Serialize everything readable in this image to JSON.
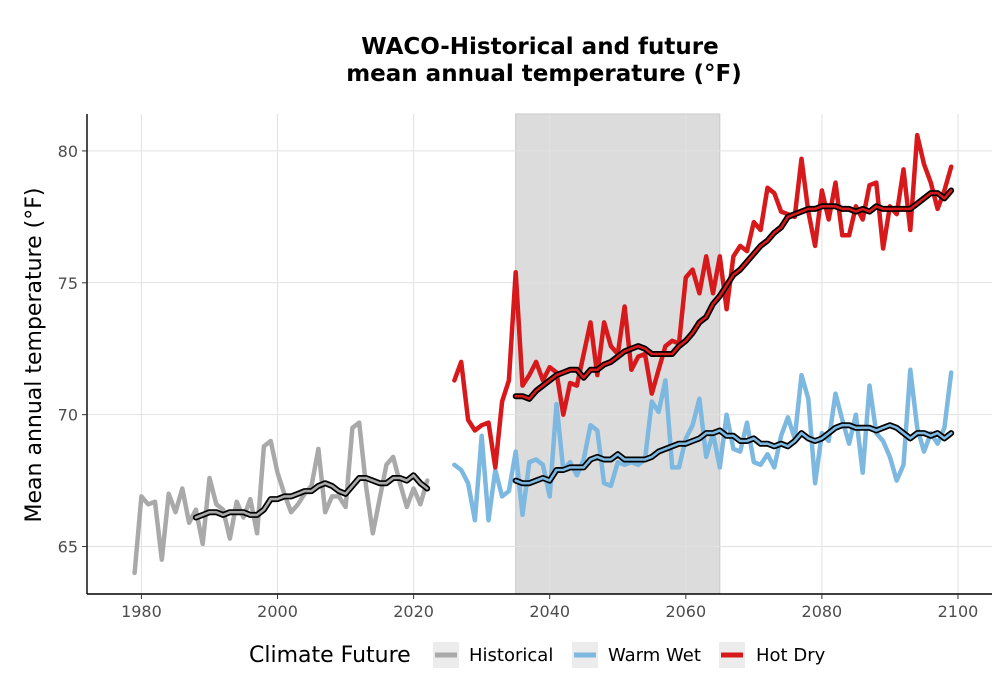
{
  "chart_data": {
    "type": "line",
    "title": [
      "WACO-Historical and future",
      "mean annual temperature (°F)"
    ],
    "xlabel": "",
    "ylabel": "Mean annual temperature (°F)",
    "xlim": [
      1972,
      2105
    ],
    "ylim": [
      63.2,
      81.4
    ],
    "x_ticks": [
      1980,
      2000,
      2020,
      2040,
      2060,
      2080,
      2100
    ],
    "y_ticks": [
      65,
      70,
      75,
      80
    ],
    "grid": true,
    "shaded_period": [
      2035,
      2065
    ],
    "legend": {
      "title": "Climate Future",
      "position": "bottom",
      "entries": [
        "Historical",
        "Warm Wet",
        "Hot Dry"
      ]
    },
    "series": [
      {
        "name": "Historical",
        "color": "#a9a9a9",
        "x": [
          1979,
          1980,
          1981,
          1982,
          1983,
          1984,
          1985,
          1986,
          1987,
          1988,
          1989,
          1990,
          1991,
          1992,
          1993,
          1994,
          1995,
          1996,
          1997,
          1998,
          1999,
          2000,
          2001,
          2002,
          2003,
          2004,
          2005,
          2006,
          2007,
          2008,
          2009,
          2010,
          2011,
          2012,
          2013,
          2014,
          2015,
          2016,
          2017,
          2018,
          2019,
          2020,
          2021,
          2022
        ],
        "y": [
          64.0,
          66.9,
          66.6,
          66.7,
          64.5,
          67.0,
          66.3,
          67.2,
          65.9,
          66.4,
          65.1,
          67.6,
          66.6,
          66.4,
          65.3,
          66.7,
          66.1,
          66.8,
          65.5,
          68.8,
          69.0,
          67.8,
          67.0,
          66.3,
          66.6,
          67.0,
          67.3,
          68.7,
          66.3,
          66.9,
          66.9,
          66.5,
          69.5,
          69.7,
          67.3,
          65.5,
          66.8,
          68.1,
          68.4,
          67.4,
          66.5,
          67.2,
          66.6,
          67.5
        ],
        "moving_average": {
          "x": [
            1988,
            1989,
            1990,
            1991,
            1992,
            1993,
            1994,
            1995,
            1996,
            1997,
            1998,
            1999,
            2000,
            2001,
            2002,
            2003,
            2004,
            2005,
            2006,
            2007,
            2008,
            2009,
            2010,
            2011,
            2012,
            2013,
            2014,
            2015,
            2016,
            2017,
            2018,
            2019,
            2020,
            2021,
            2022
          ],
          "y": [
            66.1,
            66.2,
            66.3,
            66.3,
            66.2,
            66.3,
            66.3,
            66.3,
            66.2,
            66.2,
            66.4,
            66.8,
            66.8,
            66.9,
            66.9,
            67.0,
            67.1,
            67.1,
            67.3,
            67.4,
            67.3,
            67.1,
            67.0,
            67.3,
            67.6,
            67.6,
            67.5,
            67.4,
            67.4,
            67.6,
            67.6,
            67.5,
            67.7,
            67.4,
            67.2
          ]
        }
      },
      {
        "name": "Warm Wet",
        "color": "#7db8e0",
        "x": [
          2026,
          2027,
          2028,
          2029,
          2030,
          2031,
          2032,
          2033,
          2034,
          2035,
          2036,
          2037,
          2038,
          2039,
          2040,
          2041,
          2042,
          2043,
          2044,
          2045,
          2046,
          2047,
          2048,
          2049,
          2050,
          2051,
          2052,
          2053,
          2054,
          2055,
          2056,
          2057,
          2058,
          2059,
          2060,
          2061,
          2062,
          2063,
          2064,
          2065,
          2066,
          2067,
          2068,
          2069,
          2070,
          2071,
          2072,
          2073,
          2074,
          2075,
          2076,
          2077,
          2078,
          2079,
          2080,
          2081,
          2082,
          2083,
          2084,
          2085,
          2086,
          2087,
          2088,
          2089,
          2090,
          2091,
          2092,
          2093,
          2094,
          2095,
          2096,
          2097,
          2098,
          2099
        ],
        "y": [
          68.1,
          67.9,
          67.4,
          66.0,
          69.2,
          66.0,
          67.9,
          66.9,
          67.1,
          68.6,
          66.2,
          68.2,
          68.3,
          68.1,
          66.9,
          70.4,
          67.9,
          68.2,
          67.7,
          68.3,
          69.6,
          69.4,
          67.4,
          67.3,
          68.2,
          68.1,
          68.2,
          68.1,
          68.3,
          70.5,
          70.1,
          71.3,
          68.0,
          68.0,
          69.1,
          69.6,
          70.6,
          68.4,
          69.3,
          68.0,
          70.0,
          68.7,
          68.6,
          69.7,
          68.2,
          68.1,
          68.5,
          68.0,
          69.2,
          69.9,
          69.1,
          71.5,
          70.6,
          67.4,
          69.3,
          69.0,
          70.8,
          69.8,
          68.9,
          70.0,
          67.8,
          71.1,
          69.3,
          69.0,
          68.4,
          67.5,
          68.1,
          71.7,
          69.5,
          68.6,
          69.3,
          68.9,
          69.5,
          71.6
        ],
        "moving_average": {
          "x": [
            2035,
            2036,
            2037,
            2038,
            2039,
            2040,
            2041,
            2042,
            2043,
            2044,
            2045,
            2046,
            2047,
            2048,
            2049,
            2050,
            2051,
            2052,
            2053,
            2054,
            2055,
            2056,
            2057,
            2058,
            2059,
            2060,
            2061,
            2062,
            2063,
            2064,
            2065,
            2066,
            2067,
            2068,
            2069,
            2070,
            2071,
            2072,
            2073,
            2074,
            2075,
            2076,
            2077,
            2078,
            2079,
            2080,
            2081,
            2082,
            2083,
            2084,
            2085,
            2086,
            2087,
            2088,
            2089,
            2090,
            2091,
            2092,
            2093,
            2094,
            2095,
            2096,
            2097,
            2098,
            2099
          ],
          "y": [
            67.5,
            67.4,
            67.4,
            67.5,
            67.6,
            67.5,
            67.9,
            67.9,
            68.0,
            68.0,
            68.0,
            68.3,
            68.4,
            68.3,
            68.3,
            68.5,
            68.3,
            68.3,
            68.3,
            68.3,
            68.4,
            68.6,
            68.7,
            68.8,
            68.9,
            68.9,
            69.0,
            69.1,
            69.3,
            69.3,
            69.4,
            69.2,
            69.2,
            69.0,
            69.0,
            69.1,
            68.9,
            68.9,
            68.8,
            68.9,
            68.8,
            69.0,
            69.3,
            69.1,
            69.0,
            69.1,
            69.3,
            69.5,
            69.6,
            69.6,
            69.5,
            69.5,
            69.5,
            69.4,
            69.5,
            69.6,
            69.5,
            69.3,
            69.1,
            69.3,
            69.3,
            69.2,
            69.3,
            69.1,
            69.3
          ]
        }
      },
      {
        "name": "Hot Dry",
        "color": "#d7191c",
        "x": [
          2026,
          2027,
          2028,
          2029,
          2030,
          2031,
          2032,
          2033,
          2034,
          2035,
          2036,
          2037,
          2038,
          2039,
          2040,
          2041,
          2042,
          2043,
          2044,
          2045,
          2046,
          2047,
          2048,
          2049,
          2050,
          2051,
          2052,
          2053,
          2054,
          2055,
          2056,
          2057,
          2058,
          2059,
          2060,
          2061,
          2062,
          2063,
          2064,
          2065,
          2066,
          2067,
          2068,
          2069,
          2070,
          2071,
          2072,
          2073,
          2074,
          2075,
          2076,
          2077,
          2078,
          2079,
          2080,
          2081,
          2082,
          2083,
          2084,
          2085,
          2086,
          2087,
          2088,
          2089,
          2090,
          2091,
          2092,
          2093,
          2094,
          2095,
          2096,
          2097,
          2098,
          2099
        ],
        "y": [
          71.3,
          72.0,
          69.8,
          69.4,
          69.6,
          69.7,
          68.0,
          70.5,
          71.3,
          75.4,
          71.1,
          71.5,
          72.0,
          71.3,
          71.8,
          71.6,
          70.0,
          71.2,
          71.1,
          72.3,
          73.5,
          71.5,
          73.5,
          72.6,
          72.3,
          74.1,
          71.7,
          72.2,
          72.3,
          70.8,
          71.7,
          72.6,
          72.8,
          72.7,
          75.2,
          75.5,
          74.6,
          76.0,
          74.6,
          76.0,
          74.0,
          76.0,
          76.4,
          76.2,
          77.3,
          77.0,
          78.6,
          78.4,
          77.7,
          77.6,
          77.5,
          79.7,
          77.7,
          76.4,
          78.5,
          77.4,
          78.8,
          76.8,
          76.8,
          77.9,
          77.4,
          78.7,
          78.8,
          76.3,
          77.9,
          77.6,
          79.3,
          77.0,
          80.6,
          79.5,
          78.8,
          77.8,
          78.5,
          79.4
        ],
        "moving_average": {
          "x": [
            2035,
            2036,
            2037,
            2038,
            2039,
            2040,
            2041,
            2042,
            2043,
            2044,
            2045,
            2046,
            2047,
            2048,
            2049,
            2050,
            2051,
            2052,
            2053,
            2054,
            2055,
            2056,
            2057,
            2058,
            2059,
            2060,
            2061,
            2062,
            2063,
            2064,
            2065,
            2066,
            2067,
            2068,
            2069,
            2070,
            2071,
            2072,
            2073,
            2074,
            2075,
            2076,
            2077,
            2078,
            2079,
            2080,
            2081,
            2082,
            2083,
            2084,
            2085,
            2086,
            2087,
            2088,
            2089,
            2090,
            2091,
            2092,
            2093,
            2094,
            2095,
            2096,
            2097,
            2098,
            2099
          ],
          "y": [
            70.7,
            70.7,
            70.6,
            70.9,
            71.1,
            71.3,
            71.5,
            71.6,
            71.7,
            71.7,
            71.4,
            71.7,
            71.7,
            71.9,
            72.0,
            72.2,
            72.4,
            72.5,
            72.6,
            72.5,
            72.3,
            72.3,
            72.3,
            72.3,
            72.6,
            72.8,
            73.1,
            73.5,
            73.7,
            74.2,
            74.5,
            74.9,
            75.3,
            75.5,
            75.8,
            76.1,
            76.4,
            76.6,
            76.9,
            77.1,
            77.5,
            77.6,
            77.7,
            77.8,
            77.8,
            77.9,
            77.9,
            77.9,
            77.8,
            77.8,
            77.7,
            77.8,
            77.7,
            77.9,
            77.8,
            77.8,
            77.8,
            77.8,
            77.8,
            78.0,
            78.2,
            78.4,
            78.4,
            78.2,
            78.5
          ]
        }
      }
    ]
  },
  "style": {
    "shade_color": "#dcdcdc",
    "grid_color": "#e2e2e2",
    "axis_color": "#000000",
    "moving_average_color": "#000000"
  }
}
